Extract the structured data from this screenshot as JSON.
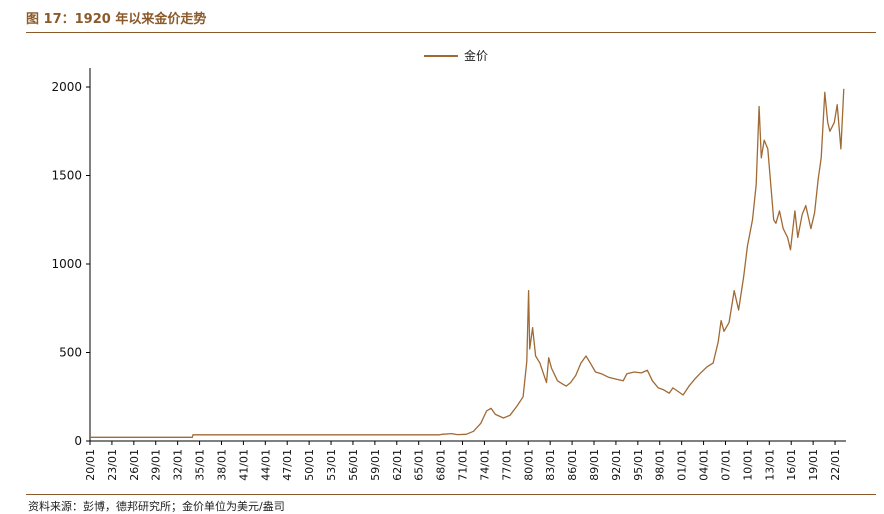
{
  "header": {
    "title": "图 17：1920 年以来金价走势"
  },
  "footer": {
    "source": "资料来源：彭博，德邦研究所；金价单位为美元/盎司"
  },
  "colors": {
    "line": "#a06a35",
    "accent": "#8b5a2b"
  },
  "chart_data": {
    "type": "line",
    "legend": "金价",
    "legend_position": "top-center",
    "grid": false,
    "ylim": [
      0,
      2100
    ],
    "yticks": [
      0,
      500,
      1000,
      1500,
      2000
    ],
    "xlim": [
      1920,
      2023.5
    ],
    "x_tick_labels": [
      "20/01",
      "23/01",
      "26/01",
      "29/01",
      "32/01",
      "35/01",
      "38/01",
      "41/01",
      "44/01",
      "47/01",
      "50/01",
      "53/01",
      "56/01",
      "59/01",
      "62/01",
      "65/01",
      "68/01",
      "71/01",
      "74/01",
      "77/01",
      "80/01",
      "83/01",
      "86/01",
      "89/01",
      "92/01",
      "95/01",
      "98/01",
      "01/01",
      "04/01",
      "07/01",
      "10/01",
      "13/01",
      "16/01",
      "19/01",
      "22/01"
    ],
    "series": [
      {
        "name": "金价",
        "x": [
          1920,
          1934.0,
          1934.1,
          1967.9,
          1968.2,
          1969.5,
          1970.3,
          1971.5,
          1972.5,
          1973.5,
          1974.3,
          1974.9,
          1975.5,
          1976.6,
          1977.5,
          1978.5,
          1979.3,
          1979.8,
          1980.05,
          1980.2,
          1980.6,
          1981.0,
          1981.6,
          1982.5,
          1982.8,
          1983.2,
          1984.0,
          1984.8,
          1985.2,
          1985.8,
          1986.5,
          1987.2,
          1987.9,
          1988.5,
          1989.2,
          1990.0,
          1991.0,
          1992.0,
          1993.0,
          1993.5,
          1994.5,
          1995.5,
          1996.3,
          1997.0,
          1997.8,
          1998.5,
          1999.3,
          1999.8,
          2000.5,
          2001.2,
          2002.0,
          2002.8,
          2003.5,
          2004.5,
          2005.3,
          2006.0,
          2006.4,
          2006.8,
          2007.5,
          2008.2,
          2008.8,
          2009.5,
          2010.0,
          2010.7,
          2011.2,
          2011.6,
          2011.9,
          2012.3,
          2012.8,
          2013.3,
          2013.6,
          2013.9,
          2014.4,
          2014.9,
          2015.5,
          2015.9,
          2016.5,
          2016.9,
          2017.5,
          2018.0,
          2018.7,
          2019.2,
          2019.7,
          2020.1,
          2020.6,
          2021.0,
          2021.3,
          2021.9,
          2022.3,
          2022.8,
          2023.2
        ],
        "values": [
          20.67,
          20.67,
          35,
          35,
          38,
          42,
          36,
          38,
          55,
          100,
          170,
          185,
          150,
          130,
          145,
          200,
          250,
          450,
          850,
          520,
          640,
          480,
          440,
          330,
          470,
          410,
          340,
          320,
          310,
          330,
          370,
          440,
          480,
          440,
          390,
          380,
          360,
          350,
          340,
          380,
          390,
          385,
          400,
          340,
          300,
          290,
          270,
          300,
          280,
          260,
          310,
          350,
          380,
          420,
          440,
          560,
          680,
          620,
          670,
          850,
          740,
          930,
          1100,
          1250,
          1450,
          1890,
          1600,
          1700,
          1650,
          1400,
          1250,
          1230,
          1300,
          1200,
          1150,
          1080,
          1300,
          1150,
          1280,
          1330,
          1200,
          1290,
          1480,
          1600,
          1970,
          1800,
          1750,
          1800,
          1900,
          1650,
          1990
        ]
      }
    ]
  }
}
